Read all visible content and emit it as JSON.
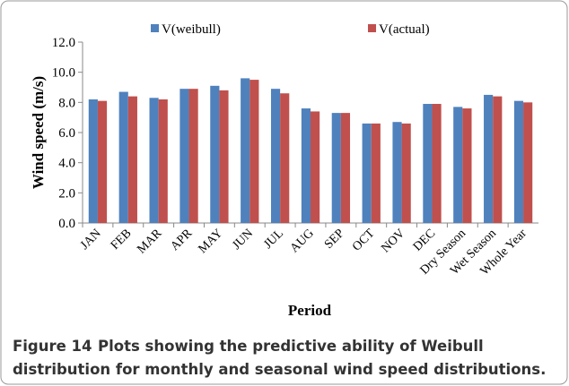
{
  "chart_data": {
    "type": "bar",
    "y_label": "Wind speed (m/s)",
    "x_label": "Period",
    "categories": [
      "JAN",
      "FEB",
      "MAR",
      "APR",
      "MAY",
      "JUN",
      "JUL",
      "AUG",
      "SEP",
      "OCT",
      "NOV",
      "DEC",
      "Dry Season",
      "Wet Season",
      "Whole Year"
    ],
    "series": [
      {
        "name": "V(weibull)",
        "color": "#4f81bd",
        "values": [
          8.2,
          8.7,
          8.3,
          8.9,
          9.1,
          9.6,
          8.9,
          7.6,
          7.3,
          6.6,
          6.7,
          7.9,
          7.7,
          8.5,
          8.1
        ]
      },
      {
        "name": "V(actual)",
        "color": "#c0504d",
        "values": [
          8.1,
          8.4,
          8.2,
          8.9,
          8.8,
          9.5,
          8.6,
          7.4,
          7.3,
          6.6,
          6.6,
          7.9,
          7.6,
          8.4,
          8.0
        ]
      }
    ],
    "ylim": [
      0,
      12
    ],
    "yticks": [
      {
        "value": 0,
        "label": "0.0"
      },
      {
        "value": 2,
        "label": "2.0"
      },
      {
        "value": 4,
        "label": "4.0"
      },
      {
        "value": 6,
        "label": "6.0"
      },
      {
        "value": 8,
        "label": "8.0"
      },
      {
        "value": 10,
        "label": "10.0"
      },
      {
        "value": 12,
        "label": "12.0"
      }
    ],
    "grid": false,
    "legend": "top"
  },
  "caption": {
    "label": "Figure 14",
    "text": "Plots showing the predictive ability of Weibull",
    "text2": "distribution for monthly and seasonal wind speed distributions."
  }
}
